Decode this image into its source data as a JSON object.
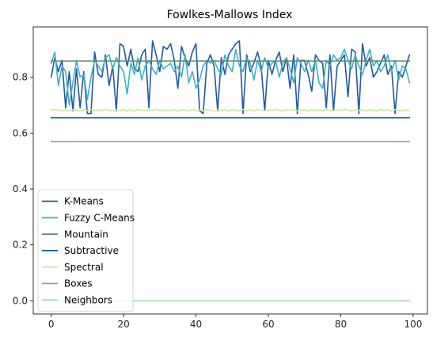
{
  "chart_data": {
    "type": "line",
    "title": "Fowlkes-Mallows Index",
    "xlabel": "",
    "ylabel": "",
    "xlim": [
      -4.95,
      103.95
    ],
    "ylim": [
      -0.047,
      0.98
    ],
    "xticks": [
      0,
      20,
      40,
      60,
      80,
      100
    ],
    "yticks": [
      0.0,
      0.2,
      0.4,
      0.6,
      0.8
    ],
    "xtick_labels": [
      "0",
      "20",
      "40",
      "60",
      "80",
      "100"
    ],
    "ytick_labels": [
      "0.0",
      "0.2",
      "0.4",
      "0.6",
      "0.8"
    ],
    "grid": false,
    "legend_position": "lower-left",
    "x_start": 0,
    "x_step": 1,
    "series": [
      {
        "name": "K-Means",
        "color": "#215a9c",
        "values": [
          0.8,
          0.87,
          0.82,
          0.86,
          0.69,
          0.82,
          0.68,
          0.83,
          0.69,
          0.82,
          0.67,
          0.67,
          0.89,
          0.81,
          0.8,
          0.88,
          0.77,
          0.84,
          0.68,
          0.92,
          0.91,
          0.84,
          0.9,
          0.83,
          0.82,
          0.88,
          0.9,
          0.69,
          0.93,
          0.88,
          0.82,
          0.91,
          0.9,
          0.92,
          0.86,
          0.76,
          0.91,
          0.87,
          0.84,
          0.89,
          0.92,
          0.68,
          0.67,
          0.85,
          0.88,
          0.84,
          0.68,
          0.87,
          0.81,
          0.88,
          0.9,
          0.92,
          0.93,
          0.67,
          0.88,
          0.82,
          0.85,
          0.89,
          0.84,
          0.68,
          0.86,
          0.81,
          0.86,
          0.89,
          0.82,
          0.87,
          0.76,
          0.88,
          0.67,
          0.86,
          0.86,
          0.81,
          0.75,
          0.88,
          0.86,
          0.85,
          0.69,
          0.88,
          0.68,
          0.84,
          0.86,
          0.88,
          0.73,
          0.9,
          0.89,
          0.67,
          0.92,
          0.84,
          0.87,
          0.8,
          0.82,
          0.85,
          0.88,
          0.81,
          0.84,
          0.67,
          0.82,
          0.8,
          0.84,
          0.88,
          0.92
        ]
      },
      {
        "name": "Fuzzy C-Means",
        "color": "#3bb3c3",
        "values": [
          0.85,
          0.89,
          0.77,
          0.84,
          0.82,
          0.7,
          0.78,
          0.86,
          0.8,
          0.81,
          0.72,
          0.8,
          0.86,
          0.84,
          0.82,
          0.87,
          0.88,
          0.83,
          0.87,
          0.84,
          0.82,
          0.74,
          0.85,
          0.81,
          0.87,
          0.79,
          0.84,
          0.86,
          0.83,
          0.81,
          0.86,
          0.83,
          0.84,
          0.85,
          0.82,
          0.84,
          0.8,
          0.88,
          0.78,
          0.82,
          0.76,
          0.79,
          0.84,
          0.86,
          0.85,
          0.86,
          0.83,
          0.81,
          0.88,
          0.84,
          0.82,
          0.9,
          0.84,
          0.82,
          0.87,
          0.85,
          0.79,
          0.86,
          0.82,
          0.87,
          0.83,
          0.85,
          0.86,
          0.8,
          0.85,
          0.87,
          0.83,
          0.78,
          0.87,
          0.85,
          0.82,
          0.86,
          0.82,
          0.86,
          0.78,
          0.76,
          0.86,
          0.84,
          0.88,
          0.86,
          0.87,
          0.9,
          0.86,
          0.83,
          0.88,
          0.84,
          0.81,
          0.86,
          0.9,
          0.84,
          0.86,
          0.82,
          0.84,
          0.88,
          0.82,
          0.86,
          0.79,
          0.84,
          0.83,
          0.78,
          0.82
        ]
      },
      {
        "name": "Mountain",
        "color": "#5b8a6b",
        "values": [
          0.858,
          0.858
        ]
      },
      {
        "name": "Subtractive",
        "color": "#0d5c8f",
        "values": [
          0.655,
          0.655
        ]
      },
      {
        "name": "Spectral",
        "color": "#c7e9a8",
        "values": [
          0.683,
          0.684,
          0.682,
          0.68,
          0.683,
          0.679,
          0.684,
          0.682,
          0.68,
          0.683,
          0.681,
          0.684,
          0.68,
          0.683,
          0.681,
          0.685,
          0.682,
          0.679,
          0.683,
          0.681,
          0.684,
          0.68,
          0.683,
          0.679,
          0.684,
          0.682,
          0.68,
          0.683,
          0.681,
          0.685,
          0.682,
          0.68,
          0.683,
          0.681,
          0.684,
          0.679,
          0.683,
          0.682,
          0.68,
          0.684,
          0.681,
          0.683,
          0.68,
          0.684,
          0.682,
          0.679,
          0.683,
          0.681,
          0.684,
          0.68,
          0.683,
          0.682,
          0.68,
          0.684,
          0.681,
          0.683,
          0.679,
          0.684,
          0.682,
          0.68,
          0.683,
          0.681,
          0.685,
          0.682,
          0.68,
          0.683,
          0.681,
          0.684,
          0.68,
          0.683,
          0.682,
          0.679,
          0.684,
          0.681,
          0.683,
          0.68,
          0.684,
          0.682,
          0.68,
          0.683,
          0.681,
          0.685,
          0.682,
          0.679,
          0.683,
          0.681,
          0.684,
          0.68,
          0.683,
          0.682,
          0.68,
          0.684,
          0.681,
          0.683,
          0.679,
          0.684,
          0.682,
          0.68,
          0.683,
          0.681,
          0.684
        ]
      },
      {
        "name": "Boxes",
        "color": "#8a9dc4",
        "values": [
          0.57,
          0.57
        ]
      },
      {
        "name": "Neighbors",
        "color": "#a8dba8",
        "values": [
          0.0,
          0.0
        ]
      }
    ]
  }
}
